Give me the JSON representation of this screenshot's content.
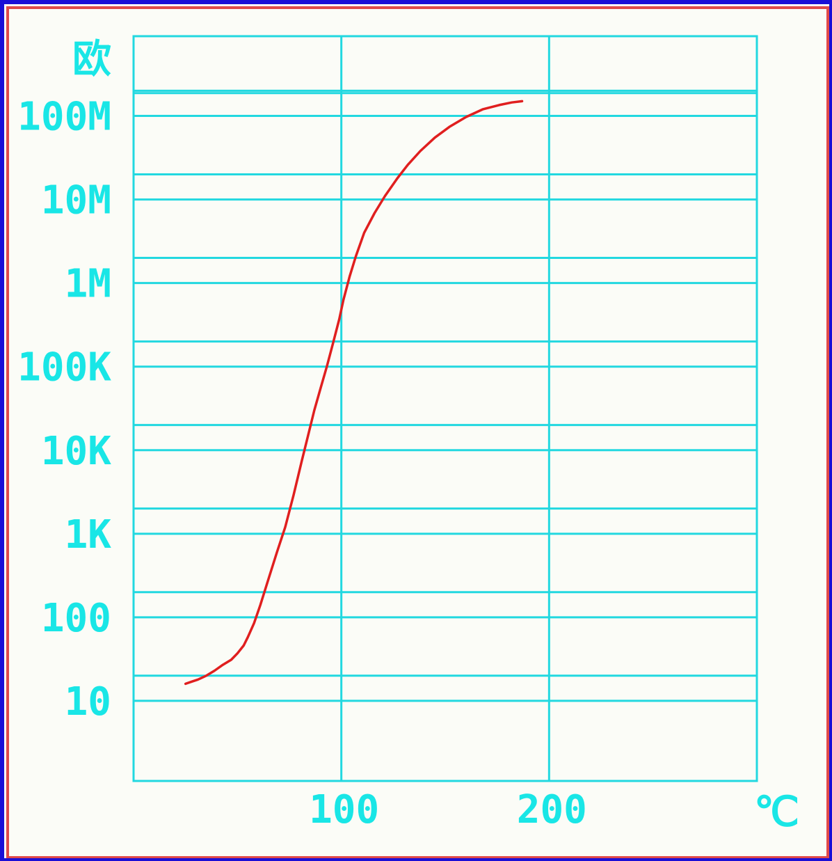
{
  "colors": {
    "frame_outer": "#1a0fd6",
    "frame_inner": "#e04a4a",
    "background": "#fbfcf7",
    "grid": "#22d8e0",
    "label": "#19e6e6",
    "curve": "#e01f1f"
  },
  "chart_data": {
    "type": "line",
    "ylabel": "欧",
    "xlabel": "℃",
    "y_scale": "log",
    "x_ticks": [
      {
        "value": 100,
        "label": "100"
      },
      {
        "value": 200,
        "label": "200"
      }
    ],
    "y_ticks": [
      {
        "value": 10,
        "label": "10"
      },
      {
        "value": 100,
        "label": "100"
      },
      {
        "value": 1000,
        "label": "1K"
      },
      {
        "value": 10000,
        "label": "10K"
      },
      {
        "value": 100000,
        "label": "100K"
      },
      {
        "value": 1000000,
        "label": "1M"
      },
      {
        "value": 10000000,
        "label": "10M"
      },
      {
        "value": 100000000,
        "label": "100M"
      }
    ],
    "xlim": [
      0,
      300
    ],
    "ylim": [
      1.1,
      900000000
    ],
    "grid": true,
    "series": [
      {
        "x": [
          25,
          28,
          31,
          35,
          39,
          43,
          47,
          50,
          53,
          55,
          58,
          61,
          65,
          69,
          73,
          77,
          81,
          84,
          87,
          90,
          93,
          96,
          99,
          101,
          104,
          107,
          111,
          116,
          121,
          127,
          132,
          138,
          145,
          152,
          160,
          168,
          176,
          182,
          187
        ],
        "y": [
          16,
          17,
          18,
          20,
          23,
          27,
          31,
          37,
          46,
          58,
          85,
          140,
          290,
          600,
          1200,
          2900,
          7500,
          15000,
          30000,
          55000,
          100000,
          190000,
          370000,
          630000,
          1200000,
          2100000,
          4000000,
          6900000,
          11000000,
          18000000,
          26000000,
          38000000,
          55000000,
          74000000,
          97000000,
          120000000,
          135000000,
          145000000,
          150000000
        ]
      }
    ]
  }
}
